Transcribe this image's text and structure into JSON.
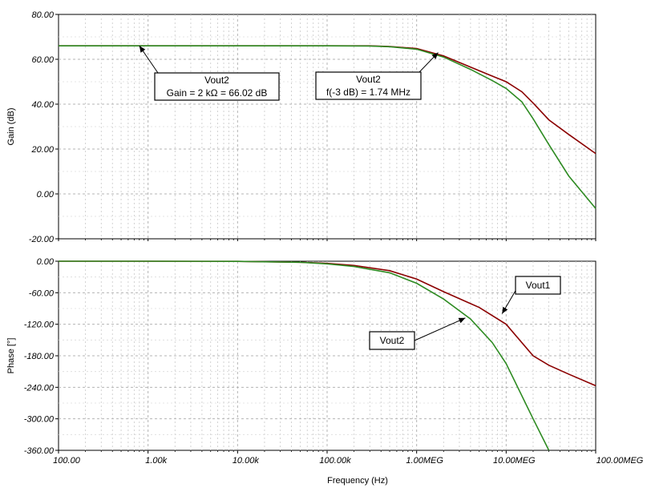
{
  "chart_data": [
    {
      "type": "line",
      "panel": "gain",
      "ylabel": "Gain (dB)",
      "ylim": [
        -20,
        80
      ],
      "yticks": [
        "80.00",
        "60.00",
        "40.00",
        "20.00",
        "0.00",
        "-20.00"
      ],
      "xlim": [
        100,
        100000000
      ],
      "xscale": "log",
      "grid": true,
      "series": [
        {
          "name": "Vout1",
          "color": "#8b0000",
          "points": [
            [
              100,
              66.02
            ],
            [
              1000,
              66.02
            ],
            [
              10000,
              66.02
            ],
            [
              100000,
              66.02
            ],
            [
              300000,
              66.0
            ],
            [
              500000,
              65.7
            ],
            [
              1000000,
              64.8
            ],
            [
              2000000,
              61.5
            ],
            [
              4000000,
              56.5
            ],
            [
              7000000,
              52.5
            ],
            [
              10000000,
              50.0
            ],
            [
              15000000,
              45.5
            ],
            [
              20000000,
              40.5
            ],
            [
              30000000,
              33.0
            ],
            [
              50000000,
              26.5
            ],
            [
              100000000,
              18.0
            ]
          ]
        },
        {
          "name": "Vout2",
          "color": "#2e8b22",
          "points": [
            [
              100,
              66.02
            ],
            [
              1000,
              66.02
            ],
            [
              10000,
              66.02
            ],
            [
              100000,
              66.02
            ],
            [
              300000,
              65.9
            ],
            [
              500000,
              65.6
            ],
            [
              1000000,
              64.5
            ],
            [
              2000000,
              61.0
            ],
            [
              4000000,
              55.5
            ],
            [
              7000000,
              50.5
            ],
            [
              10000000,
              47.0
            ],
            [
              15000000,
              41.0
            ],
            [
              20000000,
              33.5
            ],
            [
              30000000,
              22.0
            ],
            [
              50000000,
              8.0
            ],
            [
              100000000,
              -6.5
            ]
          ]
        }
      ],
      "annotations": [
        {
          "title": "Vout2",
          "text": "Gain = 2 kΩ = 66.02 dB",
          "target": [
            800,
            66.02
          ]
        },
        {
          "title": "Vout2",
          "text": "f(-3 dB) = 1.74 MHz",
          "target": [
            1740000,
            63.02
          ]
        }
      ]
    },
    {
      "type": "line",
      "panel": "phase",
      "ylabel": "Phase [°]",
      "xlabel": "Frequency (Hz)",
      "ylim": [
        -360,
        0
      ],
      "yticks": [
        "0.00",
        "-60.00",
        "-120.00",
        "-180.00",
        "-240.00",
        "-300.00",
        "-360.00"
      ],
      "xlim": [
        100,
        100000000
      ],
      "xscale": "log",
      "xticks": [
        "100.00",
        "1.00k",
        "10.00k",
        "100.00k",
        "1.00MEG",
        "10.00MEG",
        "100.00MEG"
      ],
      "grid": true,
      "series": [
        {
          "name": "Vout1",
          "color": "#8b0000",
          "points": [
            [
              100,
              0
            ],
            [
              1000,
              0
            ],
            [
              10000,
              -0.3
            ],
            [
              20000,
              -1.0
            ],
            [
              50000,
              -2.0
            ],
            [
              100000,
              -4.0
            ],
            [
              200000,
              -8.0
            ],
            [
              500000,
              -18.0
            ],
            [
              1000000,
              -34.0
            ],
            [
              2000000,
              -58.0
            ],
            [
              5000000,
              -88.0
            ],
            [
              10000000,
              -120.0
            ],
            [
              20000000,
              -180.0
            ],
            [
              30000000,
              -198.0
            ],
            [
              50000000,
              -215.0
            ],
            [
              100000000,
              -237.0
            ]
          ]
        },
        {
          "name": "Vout2",
          "color": "#2e8b22",
          "points": [
            [
              100,
              0
            ],
            [
              1000,
              0
            ],
            [
              10000,
              -0.3
            ],
            [
              20000,
              -1.0
            ],
            [
              50000,
              -2.0
            ],
            [
              100000,
              -5.0
            ],
            [
              200000,
              -10.0
            ],
            [
              500000,
              -22.0
            ],
            [
              1000000,
              -42.0
            ],
            [
              2000000,
              -72.0
            ],
            [
              4000000,
              -110.0
            ],
            [
              7000000,
              -155.0
            ],
            [
              10000000,
              -195.0
            ],
            [
              20000000,
              -300.0
            ],
            [
              30000000,
              -360.0
            ]
          ]
        }
      ],
      "annotations": [
        {
          "title": "Vout1",
          "text": "",
          "target": [
            9000000,
            -100.0
          ]
        },
        {
          "title": "Vout2",
          "text": "",
          "target": [
            3500000,
            -108.0
          ]
        }
      ]
    }
  ]
}
